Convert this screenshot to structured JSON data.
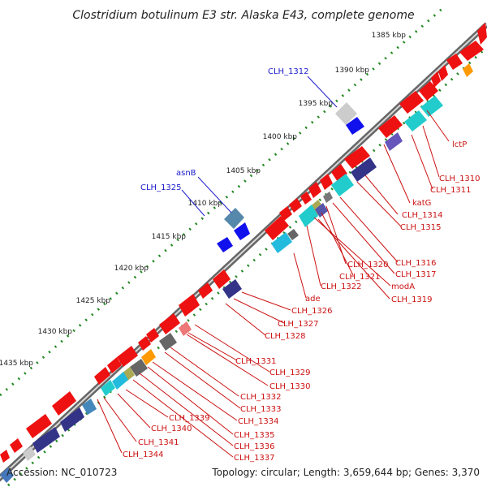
{
  "map": {
    "title": "Clostridium botulinum E3 str. Alaska E43, complete genome",
    "accession": "Accession: NC_010723",
    "summary": "Topology: circular; Length: 3,659,644 bp; Genes: 3,370"
  },
  "ticks": [
    "1385 kbp",
    "1390 kbp",
    "1395 kbp",
    "1400 kbp",
    "1405 kbp",
    "1410 kbp",
    "1415 kbp",
    "1420 kbp",
    "1425 kbp",
    "1430 kbp",
    "1435 kbp"
  ],
  "outer_labels": [
    "CLH_1312",
    "asnB",
    "CLH_1325"
  ],
  "inner_labels": [
    "lctP",
    "CLH_1310",
    "CLH_1311",
    "katG",
    "CLH_1314",
    "CLH_1315",
    "CLH_1316",
    "CLH_1317",
    "CLH_1320",
    "CLH_1321",
    "modA",
    "CLH_1319",
    "CLH_1322",
    "ade",
    "CLH_1326",
    "CLH_1327",
    "CLH_1328",
    "CLH_1331",
    "CLH_1329",
    "CLH_1330",
    "CLH_1332",
    "CLH_1333",
    "CLH_1334",
    "CLH_1335",
    "CLH_1336",
    "CLH_1337",
    "CLH_1339",
    "CLH_1340",
    "CLH_1341",
    "CLH_1344"
  ],
  "colors": {
    "red_gene": "#ee1111",
    "blue_gene": "#1111ee",
    "cyan_gene": "#22cccc",
    "navy_gene": "#333388",
    "gray_gene": "#888888",
    "orange_gene": "#ff9900",
    "outer_label": "#1a1acc",
    "inner_label": "#cc1111",
    "dots": "#228822"
  }
}
